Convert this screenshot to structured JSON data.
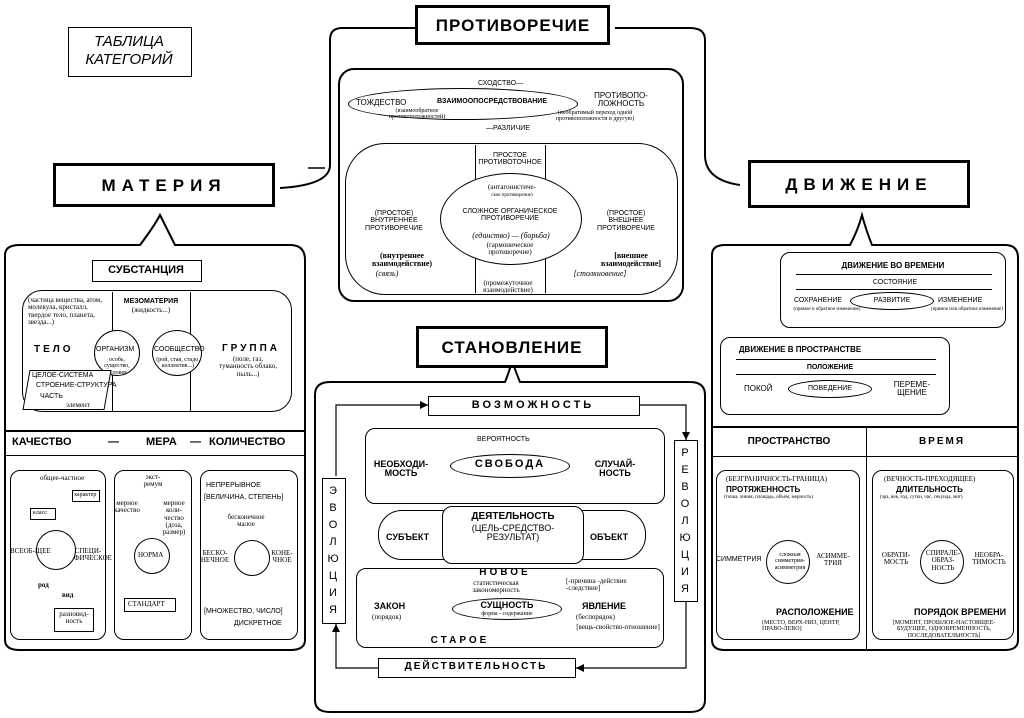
{
  "table_title": [
    "ТАБЛИЦА",
    "КАТЕГОРИЙ"
  ],
  "main_headings": {
    "contradiction": "ПРОТИВОРЕЧИЕ",
    "matter": "МАТЕРИЯ",
    "motion": "ДВИЖЕНИЕ",
    "becoming": "СТАНОВЛЕНИЕ"
  },
  "contradiction": {
    "similarity": "СХОДСТВО—",
    "identity": "ТОЖДЕСТВО",
    "identity_note": "(взаимообратное противоположностей)",
    "mediation": "ВЗАИМООПОСРЕДСТВОВАНИЕ",
    "opposite": "ПРОТИВОПО-ЛОЖНОСТЬ",
    "opposite_note": "(необратимый переход одной противоположности в другую)",
    "difference": "—РАЗЛИЧИЕ",
    "simple_pointlike": "ПРОСТОЕ ПРОТИВОТОЧНОЕ",
    "antagonistic": "(антагонистиче-",
    "antagonistic_note": "ское противоречие)",
    "inner_simple": "(ПРОСТОЕ) ВНУТРЕННЕЕ ПРОТИВОРЕЧИЕ",
    "complex": "СЛОЖНОЕ ОРГАНИЧЕСКОЕ ПРОТИВОРЕЧИЕ",
    "unity_struggle": "(единство) — (борьба)",
    "harmonic": "(гармоническое противоречие)",
    "outer_simple": "(ПРОСТОЕ) ВНЕШНЕЕ ПРОТИВОРЕЧИЕ",
    "inner_interaction": "(внутреннее взаимодействие)",
    "link": "(связь)",
    "outer_interaction": "[внешнее взаимодействие]",
    "collision": "[столкновение]",
    "intermediate": "(промежуточное взаимодействие)"
  },
  "matter": {
    "substance": "СУБСТАНЦИЯ",
    "particle_note": "(частица вещества, атом, молекула, кристалл, твердое тело, планета, звезда...)",
    "mesomatter": "МЕЗОМАТЕРИЯ",
    "mesomatter_note": "(жидкость...)",
    "body": "ТЕЛО",
    "organism": "ОРГАНИЗМ",
    "organism_note": "особь, существо, человек",
    "community": "СООБЩЕСТВО",
    "community_note": "(рой, стая, стадо, коллектив...)",
    "group": "ГРУППА",
    "group_note": "(поле, газ, туманность облако, пыль...)",
    "whole": "ЦЕЛОЕ-СИСТЕМА",
    "structure": "СТРОЕНИЕ-СТРУКТУРА",
    "part": "ЧАСТЬ",
    "element": "элемент",
    "qmq": [
      "КАЧЕСТВО",
      "—",
      "МЕРА",
      "—",
      "КОЛИЧЕСТВО"
    ],
    "general_particular": "общее-частное",
    "character": "характер",
    "class": "класс",
    "universal": "ВСЕОБ-ЩЕЕ",
    "specific": "СПЕЦИ-ФИЧЕСКОЕ",
    "genus": "род",
    "species": "вид",
    "variety": "разновид-ность",
    "extremum": "экст-ремум",
    "measure_quality": "мерное качество",
    "measure_quantity": "мерное коли-чество (доза, размер)",
    "norm": "НОРМА",
    "standard": "СТАНДАРТ",
    "continuous": "НЕПРЕРЫВНОЕ",
    "magnitude": "[ВЕЛИЧИНА, СТЕПЕНЬ]",
    "infinitesimal": "бесконечное малое",
    "infinite": "БЕСКО-НЕЧНОЕ",
    "finite": "КОНЕ-ЧНОЕ",
    "set_number": "[МНОЖЕСТВО, ЧИСЛО]",
    "discrete": "ДИСКРЕТНОЕ"
  },
  "becoming": {
    "possibility": "ВОЗМОЖНОСТЬ",
    "probability": "ВЕРОЯТНОСТЬ",
    "necessity": "НЕОБХОДИ-МОСТЬ",
    "freedom": "СВОБОДА",
    "chance": "СЛУЧАЙ-НОСТЬ",
    "activity": "ДЕЯТЕЛЬНОСТЬ",
    "goal": "(ЦЕЛЬ-СРЕДСТВО-РЕЗУЛЬТАТ)",
    "subject": "СУБЪЕКТ",
    "object": "ОБЪЕКТ",
    "new": "НОВОЕ",
    "statistical": "статистическая закономерность",
    "cause": "[-причина -действие -следствие]",
    "law": "ЗАКОН",
    "order": "(порядок)",
    "essence": "СУЩНОСТЬ",
    "form_content": "форма - содержание",
    "phenomenon": "ЯВЛЕНИЕ",
    "disorder": "(беспорядок)",
    "thing": "[вещь-свойство-отношение]",
    "old": "СТАРОЕ",
    "reality": "ДЕЙСТВИТЕЛЬНОСТЬ",
    "evolution": [
      "Э",
      "В",
      "О",
      "Л",
      "Ю",
      "Ц",
      "И",
      "Я"
    ],
    "revolution": [
      "Р",
      "Е",
      "В",
      "О",
      "Л",
      "Ю",
      "Ц",
      "И",
      "Я"
    ]
  },
  "motion": {
    "time_motion": "ДВИЖЕНИЕ ВО ВРЕМЕНИ",
    "state": "СОСТОЯНИЕ",
    "preservation": "СОХРАНЕНИЕ",
    "preservation_note": "(прямое и обратное изменение)",
    "development": "РАЗВИТИЕ",
    "change": "ИЗМЕНЕНИЕ",
    "change_note": "(прямое или обратное изменение)",
    "space_motion": "ДВИЖЕНИЕ В ПРОСТРАНСТВЕ",
    "position": "ПОЛОЖЕНИЕ",
    "rest": "ПОКОЙ",
    "behavior": "ПОВЕДЕНИЕ",
    "displacement": "ПЕРЕМЕ-ЩЕНИЕ",
    "space": "ПРОСТРАНСТВО",
    "time": "ВРЕМЯ",
    "boundless": "(БЕЗГРАНИЧНОСТЬ-ГРАНИЦА)",
    "extent": "ПРОТЯЖЕННОСТЬ",
    "extent_note": "(точка, линия, площадь, объем, мерность)",
    "symmetry": "СИММЕТРИЯ",
    "complex_symmetry": "сложная симметрия-асимметрия",
    "asymmetry": "АСИММЕ-ТРИЯ",
    "location": "РАСПОЛОЖЕНИЕ",
    "location_note": "(МЕСТО, ВЕРХ-НИЗ, ЦЕНТР, ПРАВО-ЛЕВО)",
    "eternity": "(ВЕЧНОСТЬ-ПРЕХОДЯЩЕЕ)",
    "duration": "ДЛИТЕЛЬНОСТЬ",
    "duration_note": "(эра, век, год, сутки, час, секунда, миг)",
    "reversibility": "ОБРАТИ-МОСТЬ",
    "spiral": "СПИРАЛЕ-ОБРАЗ-НОСТЬ",
    "irreversibility": "НЕОБРА-ТИМОСТЬ",
    "time_order": "ПОРЯДОК ВРЕМЕНИ",
    "time_order_note": "[МОМЕНТ, ПРОШЛОЕ-НАСТОЯЩЕЕ-БУДУЩЕЕ, ОДНОВРЕМЕННОСТЬ, ПОСЛЕДОВАТЕЛЬНОСТЬ]"
  }
}
